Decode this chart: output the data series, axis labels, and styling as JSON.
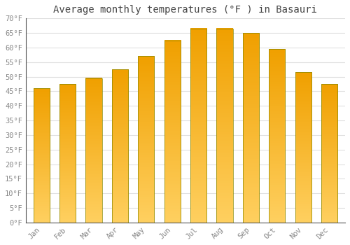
{
  "title": "Average monthly temperatures (°F ) in Basauri",
  "months": [
    "Jan",
    "Feb",
    "Mar",
    "Apr",
    "May",
    "Jun",
    "Jul",
    "Aug",
    "Sep",
    "Oct",
    "Nov",
    "Dec"
  ],
  "values": [
    46,
    47.5,
    49.5,
    52.5,
    57,
    62.5,
    66.5,
    66.5,
    65,
    59.5,
    51.5,
    47.5
  ],
  "bar_color_top": "#FFD060",
  "bar_color_bottom": "#F0A000",
  "bar_edge_color": "#888800",
  "ylim": [
    0,
    70
  ],
  "yticks": [
    0,
    5,
    10,
    15,
    20,
    25,
    30,
    35,
    40,
    45,
    50,
    55,
    60,
    65,
    70
  ],
  "ytick_labels": [
    "0°F",
    "5°F",
    "10°F",
    "15°F",
    "20°F",
    "25°F",
    "30°F",
    "35°F",
    "40°F",
    "45°F",
    "50°F",
    "55°F",
    "60°F",
    "65°F",
    "70°F"
  ],
  "background_color": "#FFFFFF",
  "grid_color": "#E0E0E0",
  "title_fontsize": 10,
  "tick_fontsize": 7.5,
  "tick_color": "#888888",
  "font_family": "monospace",
  "bar_width": 0.62
}
